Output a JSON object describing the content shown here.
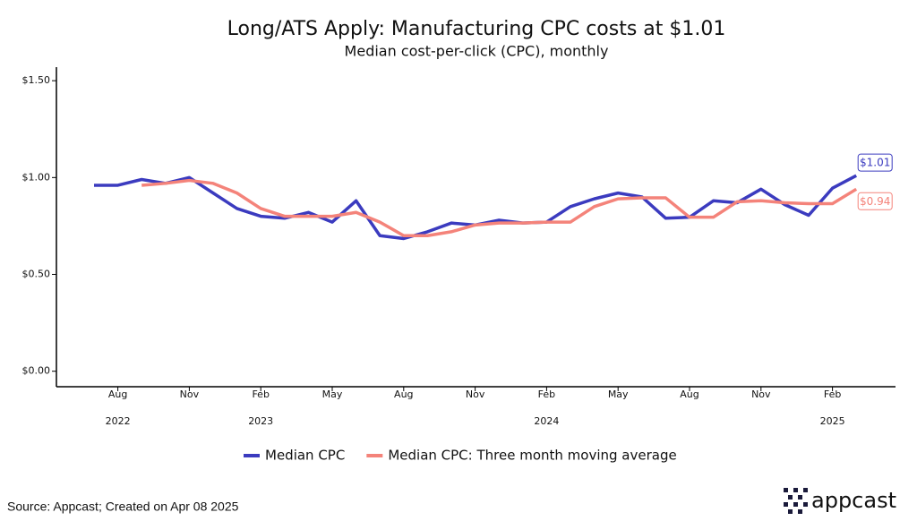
{
  "chart_data": {
    "type": "line",
    "title": "Long/ATS Apply: Manufacturing CPC costs at $1.01",
    "subtitle": "Median cost-per-click (CPC), monthly",
    "categories": [
      null,
      "Aug",
      null,
      null,
      "Nov",
      null,
      null,
      "Feb",
      null,
      null,
      "May",
      null,
      null,
      "Aug",
      null,
      null,
      "Nov",
      null,
      null,
      "Feb",
      null,
      null,
      "May",
      null,
      null,
      "Aug",
      null,
      null,
      "Nov",
      null,
      null,
      "Feb",
      null
    ],
    "year_labels": [
      null,
      "2022",
      null,
      null,
      null,
      null,
      null,
      "2023",
      null,
      null,
      null,
      null,
      null,
      null,
      null,
      null,
      null,
      null,
      null,
      "2024",
      null,
      null,
      null,
      null,
      null,
      null,
      null,
      null,
      null,
      null,
      null,
      "2025",
      null
    ],
    "series": [
      {
        "name": "Median CPC",
        "color": "#3b3bbf",
        "end_label": "$1.01",
        "values": [
          0.96,
          0.96,
          0.99,
          0.97,
          1.0,
          0.92,
          0.84,
          0.8,
          0.79,
          0.82,
          0.77,
          0.88,
          0.7,
          0.685,
          0.72,
          0.765,
          0.755,
          0.78,
          0.765,
          0.77,
          0.85,
          0.89,
          0.92,
          0.9,
          0.79,
          0.795,
          0.88,
          0.87,
          0.94,
          0.86,
          0.805,
          0.945,
          1.01
        ]
      },
      {
        "name": "Median CPC: Three month moving average",
        "color": "#f4837a",
        "end_label": "$0.94",
        "values": [
          null,
          null,
          0.96,
          0.97,
          0.985,
          0.97,
          0.92,
          0.84,
          0.8,
          0.8,
          0.8,
          0.82,
          0.77,
          0.7,
          0.7,
          0.72,
          0.755,
          0.765,
          0.765,
          0.77,
          0.77,
          0.85,
          0.89,
          0.895,
          0.895,
          0.795,
          0.795,
          0.875,
          0.88,
          0.87,
          0.865,
          0.865,
          0.94
        ]
      }
    ],
    "ylim": [
      -0.08,
      1.57
    ],
    "yticks": [
      {
        "value": 0,
        "label": "$0.00"
      },
      {
        "value": 0.5,
        "label": "$0.50"
      },
      {
        "value": 1,
        "label": "$1.00"
      },
      {
        "value": 1.5,
        "label": "$1.50"
      }
    ],
    "grid": false,
    "legend": "bottom",
    "source": "Source: Appcast; Created on Apr 08 2025",
    "logo": "appcast"
  }
}
